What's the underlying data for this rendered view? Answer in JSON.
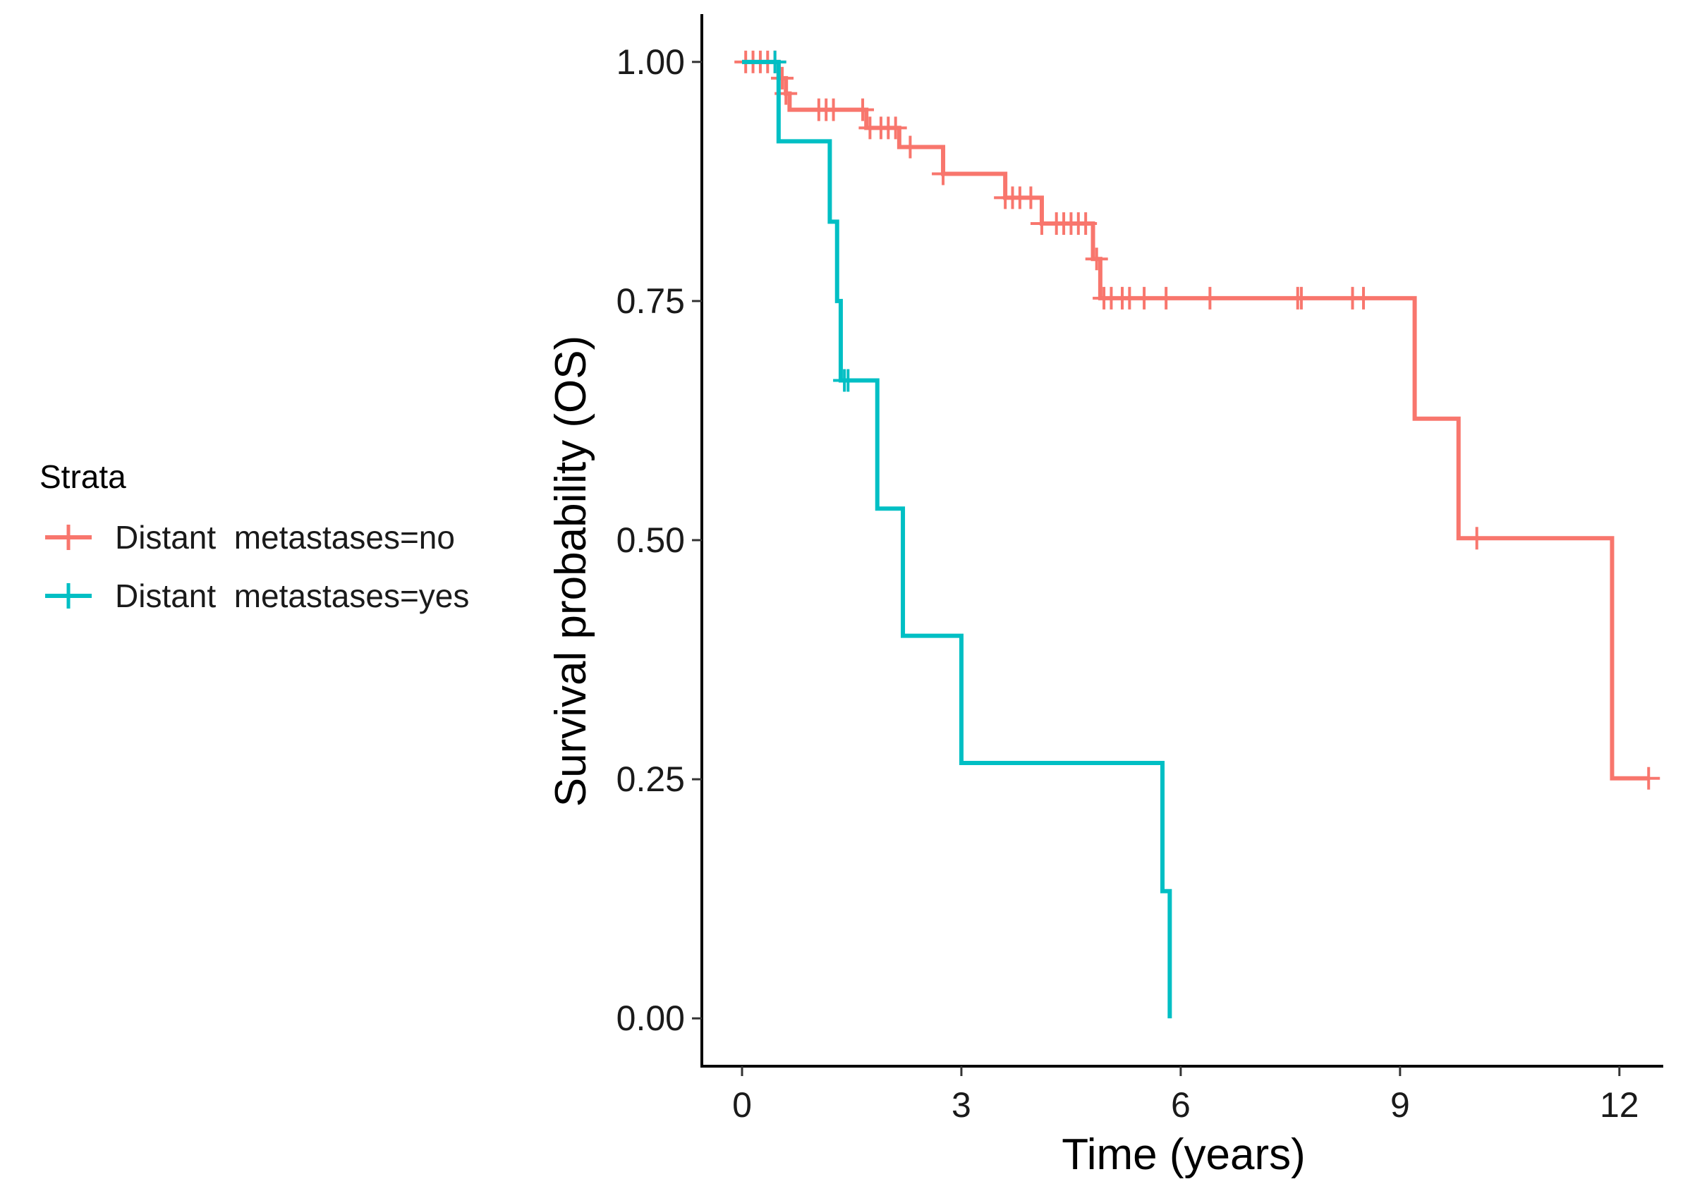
{
  "chart_data": {
    "type": "line",
    "step": true,
    "xlabel": "Time (years)",
    "ylabel": "Survival probability (OS)",
    "xlim": [
      -0.55,
      12.6
    ],
    "ylim": [
      -0.05,
      1.05
    ],
    "xticks": [
      0,
      3,
      6,
      9,
      12
    ],
    "yticks": [
      0,
      0.25,
      0.5,
      0.75,
      1.0
    ],
    "xtick_labels": [
      "0",
      "3",
      "6",
      "9",
      "12"
    ],
    "ytick_labels": [
      "0.00",
      "0.25",
      "0.50",
      "0.75",
      "1.00"
    ],
    "grid": false,
    "legend": {
      "title": "Strata",
      "position": "left"
    },
    "series": [
      {
        "name": "Distant  metastases=no",
        "color": "#F8766D",
        "steps": [
          [
            0,
            1.0
          ],
          [
            0.5,
            0.983
          ],
          [
            0.6,
            0.967
          ],
          [
            0.65,
            0.95
          ],
          [
            1.7,
            0.931
          ],
          [
            2.15,
            0.911
          ],
          [
            2.75,
            0.883
          ],
          [
            3.6,
            0.858
          ],
          [
            4.1,
            0.831
          ],
          [
            4.8,
            0.794
          ],
          [
            4.9,
            0.753
          ],
          [
            9.2,
            0.627
          ],
          [
            9.8,
            0.502
          ],
          [
            11.9,
            0.251
          ],
          [
            12.4,
            0.251
          ]
        ],
        "censor": [
          0.05,
          0.15,
          0.25,
          0.35,
          0.45,
          0.55,
          0.6,
          1.05,
          1.15,
          1.25,
          1.65,
          1.75,
          1.9,
          2.0,
          2.1,
          2.3,
          2.75,
          3.6,
          3.7,
          3.8,
          3.95,
          4.1,
          4.3,
          4.4,
          4.5,
          4.6,
          4.7,
          4.85,
          4.95,
          5.05,
          5.2,
          5.3,
          5.5,
          5.8,
          6.4,
          7.6,
          7.65,
          8.35,
          8.5,
          10.05,
          12.4
        ]
      },
      {
        "name": "Distant  metastases=yes",
        "color": "#00BFC4",
        "steps": [
          [
            0,
            1.0
          ],
          [
            0.5,
            0.917
          ],
          [
            1.2,
            0.833
          ],
          [
            1.3,
            0.75
          ],
          [
            1.35,
            0.667
          ],
          [
            1.85,
            0.533
          ],
          [
            2.2,
            0.4
          ],
          [
            3.0,
            0.267
          ],
          [
            5.75,
            0.133
          ],
          [
            5.85,
            0.0
          ],
          [
            5.85,
            0.0
          ]
        ],
        "censor": [
          0.45,
          1.4,
          1.45
        ]
      }
    ]
  }
}
